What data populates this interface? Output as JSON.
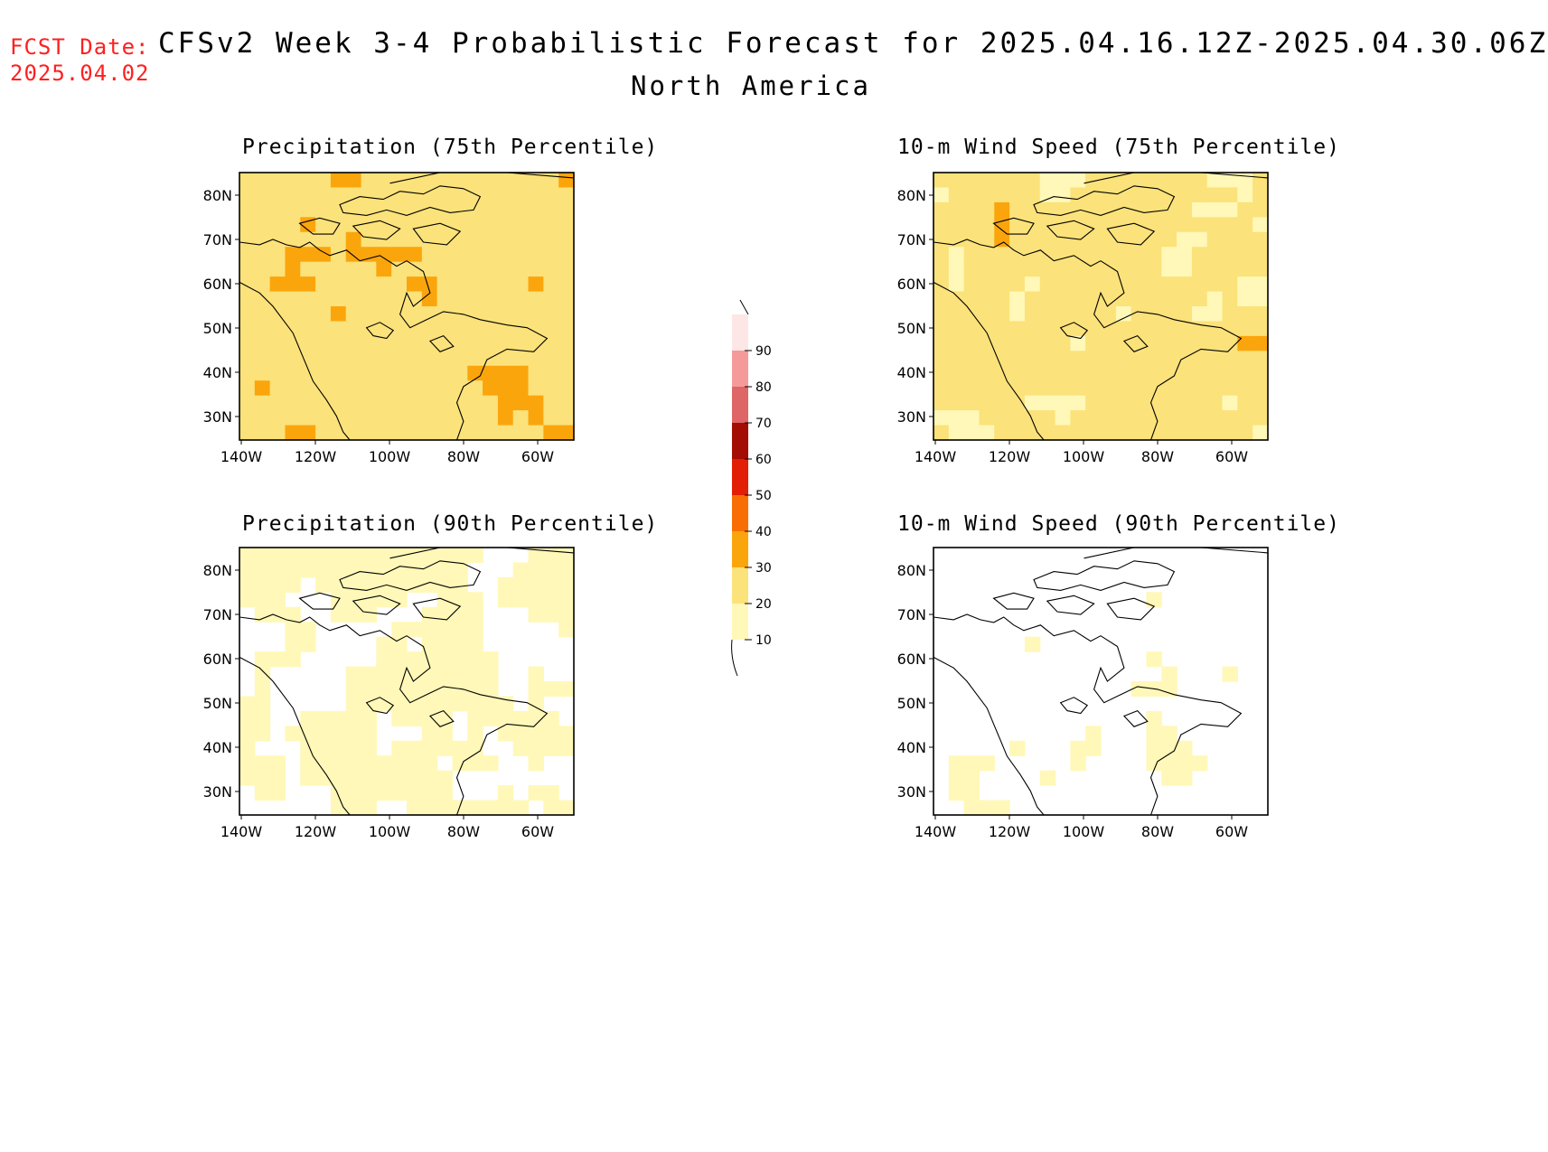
{
  "header": {
    "fcst_label": "FCST Date:",
    "fcst_date": "2025.04.02",
    "title": "CFSv2 Week 3-4 Probabilistic Forecast for 2025.04.16.12Z-2025.04.30.06Z",
    "subtitle": "North America"
  },
  "panels": [
    {
      "title": "Precipitation (75th Percentile)",
      "variable": "precipitation",
      "percentile": 75,
      "level": "high"
    },
    {
      "title": "10-m Wind Speed (75th Percentile)",
      "variable": "wind",
      "percentile": 75,
      "level": "mid"
    },
    {
      "title": "Precipitation (90th Percentile)",
      "variable": "precipitation",
      "percentile": 90,
      "level": "low"
    },
    {
      "title": "10-m Wind Speed (90th Percentile)",
      "variable": "wind",
      "percentile": 90,
      "level": "vlow"
    }
  ],
  "axes": {
    "lat_labels": [
      "80N",
      "70N",
      "60N",
      "50N",
      "40N",
      "30N"
    ],
    "lon_labels": [
      "140W",
      "120W",
      "100W",
      "80W",
      "60W"
    ]
  },
  "colorbar": {
    "levels": [
      "10",
      "20",
      "30",
      "40",
      "50",
      "60",
      "70",
      "80",
      "90"
    ],
    "colors": [
      "#fff8b8",
      "#fbe27a",
      "#fba50c",
      "#f86e04",
      "#e21e04",
      "#a30d04",
      "#de6666",
      "#f59a9a",
      "#fde6e6"
    ]
  }
}
